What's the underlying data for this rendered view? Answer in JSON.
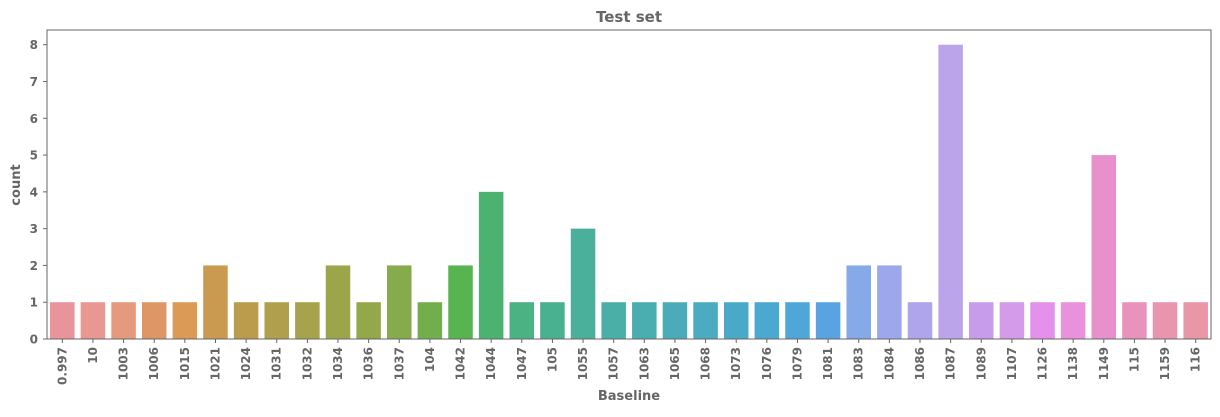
{
  "chart_data": {
    "type": "bar",
    "title": "Test set",
    "xlabel": "Baseline",
    "ylabel": "count",
    "ylim": [
      0,
      8.4
    ],
    "yticks": [
      0,
      1,
      2,
      3,
      4,
      5,
      6,
      7,
      8
    ],
    "grid": false,
    "categories": [
      "0.997",
      "10",
      "1003",
      "1006",
      "1015",
      "1021",
      "1024",
      "1031",
      "1032",
      "1034",
      "1036",
      "1037",
      "104",
      "1042",
      "1044",
      "1047",
      "105",
      "1055",
      "1057",
      "1063",
      "1065",
      "1068",
      "1073",
      "1076",
      "1079",
      "1081",
      "1083",
      "1084",
      "1086",
      "1087",
      "1089",
      "1107",
      "1126",
      "1138",
      "1149",
      "115",
      "1159",
      "116"
    ],
    "values": [
      1,
      1,
      1,
      1,
      1,
      2,
      1,
      1,
      1,
      2,
      1,
      2,
      1,
      2,
      4,
      1,
      1,
      3,
      1,
      1,
      1,
      1,
      1,
      1,
      1,
      1,
      2,
      2,
      1,
      8,
      1,
      1,
      1,
      1,
      5,
      1,
      1,
      1
    ],
    "colors": [
      "#e8949b",
      "#e89792",
      "#e59a7e",
      "#df9666",
      "#db9a55",
      "#c99a4f",
      "#bb9c4d",
      "#b09f4d",
      "#a7a34c",
      "#9da54b",
      "#93a84b",
      "#86ab4d",
      "#73ae4d",
      "#57b451",
      "#4bb26f",
      "#4ab283",
      "#49b18f",
      "#4ab09b",
      "#4aafa6",
      "#4aadb0",
      "#4aacb8",
      "#4babc1",
      "#4aa9c8",
      "#4ba8d0",
      "#4ea6d9",
      "#5aa3e2",
      "#86aae7",
      "#9da7eb",
      "#aea5ec",
      "#bca4eb",
      "#c79cea",
      "#d39be9",
      "#e391ea",
      "#e991dc",
      "#e890cc",
      "#e893bc",
      "#e995b0",
      "#e996a6"
    ]
  }
}
